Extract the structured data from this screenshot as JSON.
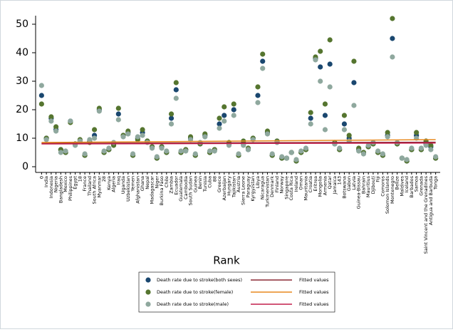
{
  "chart_data": {
    "type": "scatter",
    "x_label": "Rank",
    "categories": [
      "0",
      "India",
      "Indonesia",
      "Nigeria",
      "Bangladesh",
      "Mexico",
      "Philippines",
      "Egypt",
      "18",
      "France",
      "Thailand",
      "South Africa",
      "Myanmar",
      "28",
      "Kenya",
      "Algeria",
      "Iraq",
      "Uganda",
      "Uzbekistan",
      "Yemen",
      "Afghanistan",
      "Ghana",
      "Nepal",
      "Madagascar",
      "Niger",
      "Burkina Faso",
      "Chile",
      "Zambia",
      "Ecuador",
      "Guatemala",
      "Cambodia",
      "South Sudan",
      "Guinea",
      "Benin",
      "Tunisia",
      "Cuba",
      "88",
      "Greece",
      "Azerbaijan",
      "Hungary",
      "Tajikistan",
      "Austria",
      "Sierra Leone",
      "Paraguay",
      "Kyrgyzstan",
      "Libya",
      "Nicaragua",
      "Turkmenistan",
      "Denmark",
      "Finland",
      "Norway",
      "Singapore",
      "Costa Rica",
      "Ireland",
      "Oman",
      "Mauritania",
      "Croatia",
      "Eritrea",
      "Mongolia",
      "Armenia",
      "Qatar",
      "Jamaica",
      "143",
      "Botswana",
      "Gabon",
      "Latvia",
      "Guinea-Bissau",
      "Bahrain",
      "Mauritius",
      "Djibouti",
      "Fiji",
      "Comoros",
      "Solomon Islands",
      "Montenegro",
      "Belize",
      "Maldives",
      "Iceland",
      "Barbados",
      "Samoa",
      "Grenada",
      "Saint Vincent and the Grenadines",
      "Antigua and Barbuda",
      "Tonga"
    ],
    "series": [
      {
        "name": "Death rate due to stroke(both sexes)",
        "color": "#1a476f",
        "values": [
          25,
          10,
          17,
          13,
          6,
          5,
          16,
          8,
          9,
          4,
          9,
          11,
          20,
          5,
          6,
          8,
          18.5,
          11,
          12,
          4,
          10,
          12,
          9,
          7,
          3,
          7,
          5,
          17,
          27,
          5,
          6,
          10,
          4,
          8,
          11,
          5,
          6,
          15,
          18,
          8,
          20,
          4,
          8,
          6,
          10,
          25,
          37,
          12,
          4,
          9,
          3,
          3,
          5,
          2,
          5,
          6,
          17,
          38,
          35,
          18,
          36,
          8,
          6,
          15,
          10,
          29.5,
          6,
          5,
          7,
          8,
          5,
          4,
          11,
          45,
          8,
          3,
          2,
          6,
          11,
          6,
          8,
          7,
          3
        ]
      },
      {
        "name": "Death rate due to stroke(female)",
        "color": "#55752f",
        "values": [
          22,
          10,
          17.5,
          14,
          6,
          5,
          15.5,
          8,
          9.5,
          4,
          8.5,
          13,
          20.5,
          5,
          6,
          7.5,
          20.5,
          11,
          12.5,
          4,
          9.5,
          13,
          9,
          7,
          3,
          7,
          5,
          18.5,
          29.5,
          5,
          6,
          10.5,
          4,
          8,
          11.5,
          5,
          6,
          17,
          21,
          8.5,
          22,
          4,
          9,
          6.5,
          10,
          28,
          39.5,
          12.5,
          4,
          9,
          3,
          3,
          5,
          2,
          5,
          6,
          19,
          38.5,
          40.5,
          22,
          44.5,
          8.5,
          6,
          18,
          11,
          37,
          6.5,
          5,
          7,
          8,
          5,
          4,
          12,
          52,
          8,
          3,
          2,
          6,
          12,
          6,
          9,
          7.5,
          3
        ]
      },
      {
        "name": "Death rate due to stroke(male)",
        "color": "#8fa89e",
        "values": [
          28.5,
          9.5,
          16,
          12.5,
          5,
          5.5,
          16,
          7.5,
          9,
          4.5,
          9.5,
          10,
          19.5,
          5.5,
          6.5,
          8.5,
          16.5,
          10.5,
          11.5,
          4.5,
          10.5,
          11,
          8.5,
          6.5,
          3.5,
          6.5,
          5.5,
          15,
          24,
          5.5,
          5.5,
          9.5,
          4.5,
          8.5,
          10.5,
          5.5,
          5.5,
          13.5,
          16,
          7.5,
          18,
          4.5,
          7.5,
          6,
          9.5,
          22.5,
          34.5,
          11.5,
          4.5,
          8.5,
          3.5,
          3,
          5,
          2.5,
          5.5,
          6.5,
          15,
          37.5,
          30,
          13,
          28,
          8,
          6.5,
          13,
          9,
          21.5,
          5.5,
          4.5,
          7.5,
          8.5,
          5.5,
          4.5,
          10.5,
          38.5,
          8.5,
          3,
          2.5,
          6.5,
          10,
          6.5,
          7.5,
          6,
          3.5
        ]
      }
    ],
    "fits": [
      {
        "name": "Fitted values",
        "color": "#8c2a36",
        "start": 8.2,
        "end": 8.6
      },
      {
        "name": "Fitted values",
        "color": "#e8891e",
        "start": 8.5,
        "end": 9.5
      },
      {
        "name": "Fitted values",
        "color": "#c21f4c",
        "start": 8,
        "end": 8.3
      }
    ],
    "ylim": [
      -2,
      53
    ],
    "yticks": [
      0,
      10,
      20,
      30,
      40,
      50
    ],
    "grid": false
  }
}
